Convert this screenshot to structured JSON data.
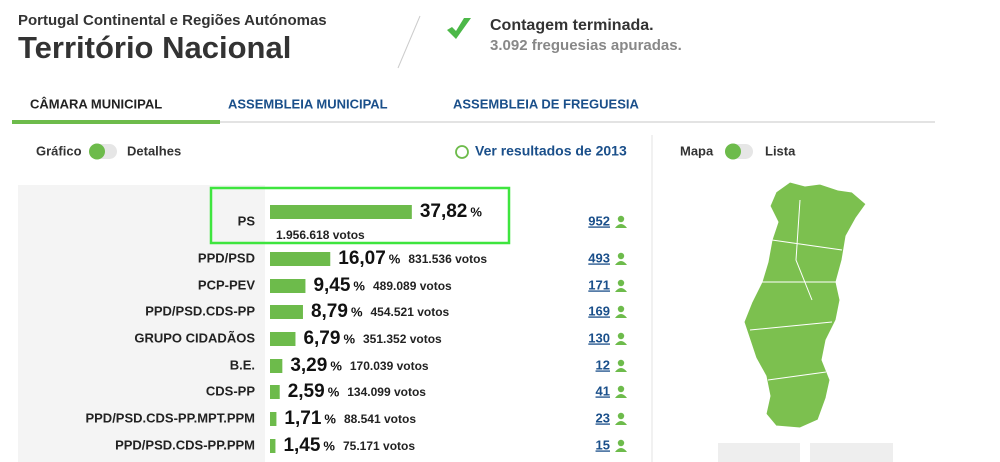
{
  "header": {
    "region": "Portugal Continental e Regiões Autónomas",
    "title": "Território Nacional",
    "status": "Contagem terminada.",
    "status_detail": "3.092 freguesias apuradas."
  },
  "tabs": [
    "CÂMARA MUNICIPAL",
    "ASSEMBLEIA MUNICIPAL",
    "ASSEMBLEIA DE FREGUESIA"
  ],
  "toggles": {
    "left_on": "Gráfico",
    "left_off": "Detalhes",
    "history_link": "Ver resultados de 2013",
    "right_on": "Mapa",
    "right_off": "Lista"
  },
  "results": {
    "parties": [
      "PS",
      "PPD/PSD",
      "PCP-PEV",
      "PPD/PSD.CDS-PP",
      "GRUPO CIDADÃOS",
      "B.E.",
      "CDS-PP",
      "PPD/PSD.CDS-PP.MPT.PPM",
      "PPD/PSD.CDS-PP.PPM"
    ],
    "values": [
      37.82,
      16.07,
      9.45,
      8.79,
      6.79,
      3.29,
      2.59,
      1.71,
      1.45
    ],
    "value_labels": [
      "37,82",
      "16,07",
      "9,45",
      "8,79",
      "6,79",
      "3,29",
      "2,59",
      "1,71",
      "1,45"
    ],
    "percent_sign": "%",
    "votes": [
      "1.956.618 votos",
      "831.536 votos",
      "489.089 votos",
      "454.521 votos",
      "351.352 votos",
      "170.039 votos",
      "134.099 votos",
      "88.541 votos",
      "75.171 votos"
    ],
    "mandates": [
      "952",
      "493",
      "171",
      "169",
      "130",
      "12",
      "41",
      "23",
      "15"
    ]
  }
}
